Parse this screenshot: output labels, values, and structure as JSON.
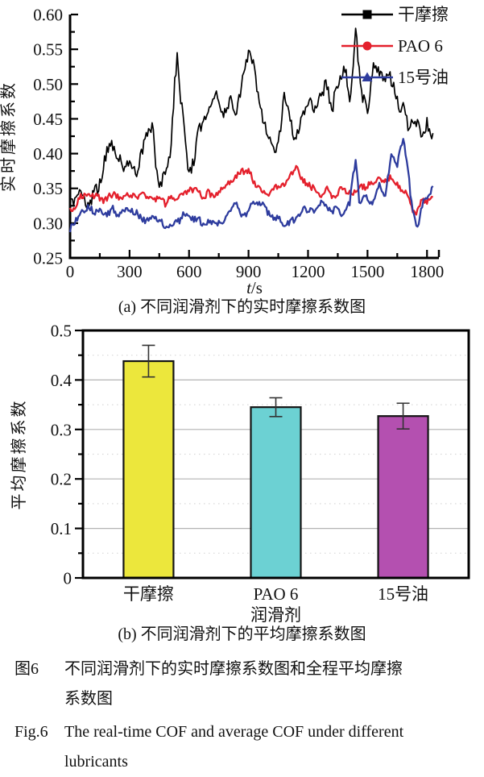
{
  "figure": {
    "caption_zh": {
      "label": "图6",
      "lines": [
        "不同润滑剂下的实时摩擦系数图和全程平均摩擦",
        "系数图"
      ]
    },
    "caption_en": {
      "label": "Fig.6",
      "lines": [
        "The real-time COF and average COF under different",
        "lubricants"
      ]
    }
  },
  "chart_data": [
    {
      "type": "line",
      "caption": "(a) 不同润滑剂下的实时摩擦系数图",
      "xlabel": "t/s",
      "ylabel": "实时摩擦系数",
      "xlim": [
        0,
        1860
      ],
      "ylim": [
        0.25,
        0.6
      ],
      "x_major_step": 300,
      "x_minor_step": 150,
      "y_major_step": 0.05,
      "y_minor_step": 0.025,
      "grid": false,
      "legend_position": "top-right",
      "sample_step_s": 6,
      "series": [
        {
          "name": "干摩擦",
          "color": "#000000",
          "marker": "square",
          "stroke_width": 1.7,
          "seed": 42,
          "noise_fine": 0.009,
          "noise_coarse": 0.016,
          "anchors": [
            [
              0,
              0.335
            ],
            [
              30,
              0.33
            ],
            [
              60,
              0.328
            ],
            [
              90,
              0.333
            ],
            [
              120,
              0.345
            ],
            [
              150,
              0.36
            ],
            [
              180,
              0.39
            ],
            [
              210,
              0.412
            ],
            [
              240,
              0.4
            ],
            [
              270,
              0.37
            ],
            [
              300,
              0.39
            ],
            [
              330,
              0.378
            ],
            [
              360,
              0.398
            ],
            [
              390,
              0.425
            ],
            [
              420,
              0.44
            ],
            [
              450,
              0.352
            ],
            [
              480,
              0.362
            ],
            [
              510,
              0.43
            ],
            [
              540,
              0.543
            ],
            [
              570,
              0.46
            ],
            [
              600,
              0.382
            ],
            [
              630,
              0.405
            ],
            [
              660,
              0.435
            ],
            [
              690,
              0.465
            ],
            [
              720,
              0.49
            ],
            [
              750,
              0.472
            ],
            [
              780,
              0.452
            ],
            [
              810,
              0.478
            ],
            [
              840,
              0.462
            ],
            [
              870,
              0.52
            ],
            [
              900,
              0.558
            ],
            [
              930,
              0.515
            ],
            [
              960,
              0.47
            ],
            [
              990,
              0.432
            ],
            [
              1020,
              0.42
            ],
            [
              1050,
              0.405
            ],
            [
              1080,
              0.472
            ],
            [
              1110,
              0.448
            ],
            [
              1140,
              0.432
            ],
            [
              1170,
              0.462
            ],
            [
              1200,
              0.485
            ],
            [
              1230,
              0.462
            ],
            [
              1260,
              0.475
            ],
            [
              1290,
              0.49
            ],
            [
              1320,
              0.472
            ],
            [
              1350,
              0.492
            ],
            [
              1380,
              0.515
            ],
            [
              1410,
              0.478
            ],
            [
              1440,
              0.592
            ],
            [
              1470,
              0.5
            ],
            [
              1500,
              0.462
            ],
            [
              1530,
              0.525
            ],
            [
              1560,
              0.502
            ],
            [
              1590,
              0.52
            ],
            [
              1620,
              0.496
            ],
            [
              1650,
              0.476
            ],
            [
              1680,
              0.462
            ],
            [
              1710,
              0.448
            ],
            [
              1740,
              0.44
            ],
            [
              1770,
              0.434
            ],
            [
              1800,
              0.428
            ],
            [
              1830,
              0.425
            ]
          ]
        },
        {
          "name": "PAO 6",
          "color": "#e4202c",
          "marker": "circle",
          "stroke_width": 2.3,
          "seed": 7,
          "noise_fine": 0.0045,
          "noise_coarse": 0.0065,
          "anchors": [
            [
              0,
              0.325
            ],
            [
              60,
              0.335
            ],
            [
              120,
              0.34
            ],
            [
              180,
              0.335
            ],
            [
              240,
              0.342
            ],
            [
              300,
              0.338
            ],
            [
              360,
              0.344
            ],
            [
              420,
              0.337
            ],
            [
              480,
              0.331
            ],
            [
              540,
              0.34
            ],
            [
              600,
              0.35
            ],
            [
              660,
              0.341
            ],
            [
              720,
              0.337
            ],
            [
              780,
              0.35
            ],
            [
              840,
              0.362
            ],
            [
              900,
              0.383
            ],
            [
              930,
              0.36
            ],
            [
              960,
              0.35
            ],
            [
              1020,
              0.346
            ],
            [
              1080,
              0.356
            ],
            [
              1140,
              0.376
            ],
            [
              1170,
              0.36
            ],
            [
              1200,
              0.357
            ],
            [
              1260,
              0.346
            ],
            [
              1320,
              0.341
            ],
            [
              1380,
              0.35
            ],
            [
              1440,
              0.346
            ],
            [
              1500,
              0.352
            ],
            [
              1560,
              0.36
            ],
            [
              1620,
              0.366
            ],
            [
              1660,
              0.345
            ],
            [
              1700,
              0.34
            ],
            [
              1740,
              0.308
            ],
            [
              1770,
              0.325
            ],
            [
              1830,
              0.335
            ]
          ]
        },
        {
          "name": "15号油",
          "color": "#2e3c9e",
          "marker": "triangle",
          "stroke_width": 2.3,
          "seed": 19,
          "noise_fine": 0.0045,
          "noise_coarse": 0.008,
          "anchors": [
            [
              0,
              0.298
            ],
            [
              60,
              0.315
            ],
            [
              120,
              0.318
            ],
            [
              180,
              0.312
            ],
            [
              240,
              0.318
            ],
            [
              300,
              0.32
            ],
            [
              360,
              0.312
            ],
            [
              420,
              0.305
            ],
            [
              480,
              0.296
            ],
            [
              540,
              0.308
            ],
            [
              600,
              0.315
            ],
            [
              660,
              0.3
            ],
            [
              720,
              0.294
            ],
            [
              780,
              0.312
            ],
            [
              840,
              0.32
            ],
            [
              900,
              0.314
            ],
            [
              960,
              0.33
            ],
            [
              1020,
              0.312
            ],
            [
              1080,
              0.3
            ],
            [
              1140,
              0.306
            ],
            [
              1200,
              0.318
            ],
            [
              1260,
              0.33
            ],
            [
              1320,
              0.312
            ],
            [
              1380,
              0.322
            ],
            [
              1410,
              0.33
            ],
            [
              1440,
              0.398
            ],
            [
              1460,
              0.33
            ],
            [
              1500,
              0.335
            ],
            [
              1530,
              0.33
            ],
            [
              1560,
              0.362
            ],
            [
              1590,
              0.345
            ],
            [
              1620,
              0.4
            ],
            [
              1650,
              0.38
            ],
            [
              1680,
              0.425
            ],
            [
              1700,
              0.39
            ],
            [
              1720,
              0.33
            ],
            [
              1750,
              0.292
            ],
            [
              1780,
              0.33
            ],
            [
              1810,
              0.345
            ],
            [
              1830,
              0.362
            ]
          ]
        }
      ]
    },
    {
      "type": "bar",
      "caption": "(b) 不同润滑剂下的平均摩擦系数图",
      "xlabel": "润滑剂",
      "ylabel": "平均摩擦系数",
      "ylim": [
        0,
        0.5
      ],
      "y_major_step": 0.1,
      "y_minor_step": 0.05,
      "grid": true,
      "categories": [
        "干摩擦",
        "PAO 6",
        "15号油"
      ],
      "values": [
        0.438,
        0.345,
        0.327
      ],
      "errors": [
        0.032,
        0.019,
        0.026
      ],
      "bar_colors": [
        "#ece73c",
        "#6cd1d3",
        "#b450b0"
      ],
      "bar_outline": "#141414",
      "grid_major_color": "#b3b3b3",
      "grid_minor_color": "#d8d8d8",
      "error_bar_color": "#333333"
    }
  ]
}
